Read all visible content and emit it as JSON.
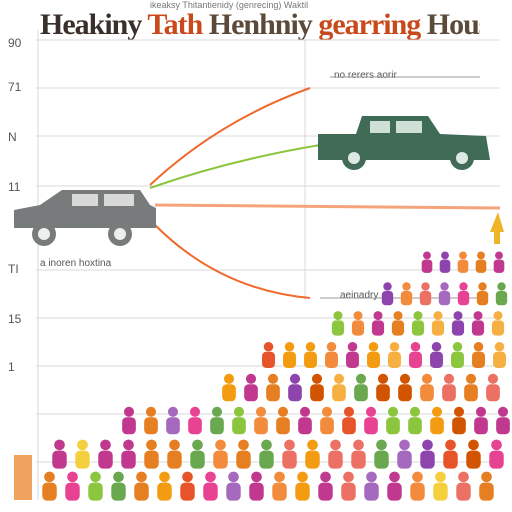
{
  "chart": {
    "title_part1": "Heakiny",
    "title_part2": "Tath",
    "title_part3": "Henhniy",
    "title_part4": "gearring",
    "title_part5": "Hous",
    "top_caption": "ikeaksy Thitantienidy (genrecing) Waktil",
    "y_ticks": [
      "90",
      "71",
      "N",
      "11",
      "TI",
      "15",
      "1"
    ],
    "annotation_right_top": "no rerers aorir",
    "annotation_right_mid": "aeinadry",
    "annotation_left_row": "a inoren hoxtina"
  },
  "colors": {
    "truck_right": "#3f6b57",
    "car_left": "#777b7c",
    "line_orange": "#ef6a2c",
    "line_green": "#8cc63f",
    "line_peach": "#f5a37a",
    "grid": "#d8d8d8"
  },
  "chart_data": {
    "type": "other",
    "title": "Heakiny Tath Henhniy gearring Hous",
    "y_tick_labels": [
      "90",
      "71",
      "N",
      "11",
      "TI",
      "15",
      "1"
    ],
    "legend": "none",
    "grid": true
  }
}
